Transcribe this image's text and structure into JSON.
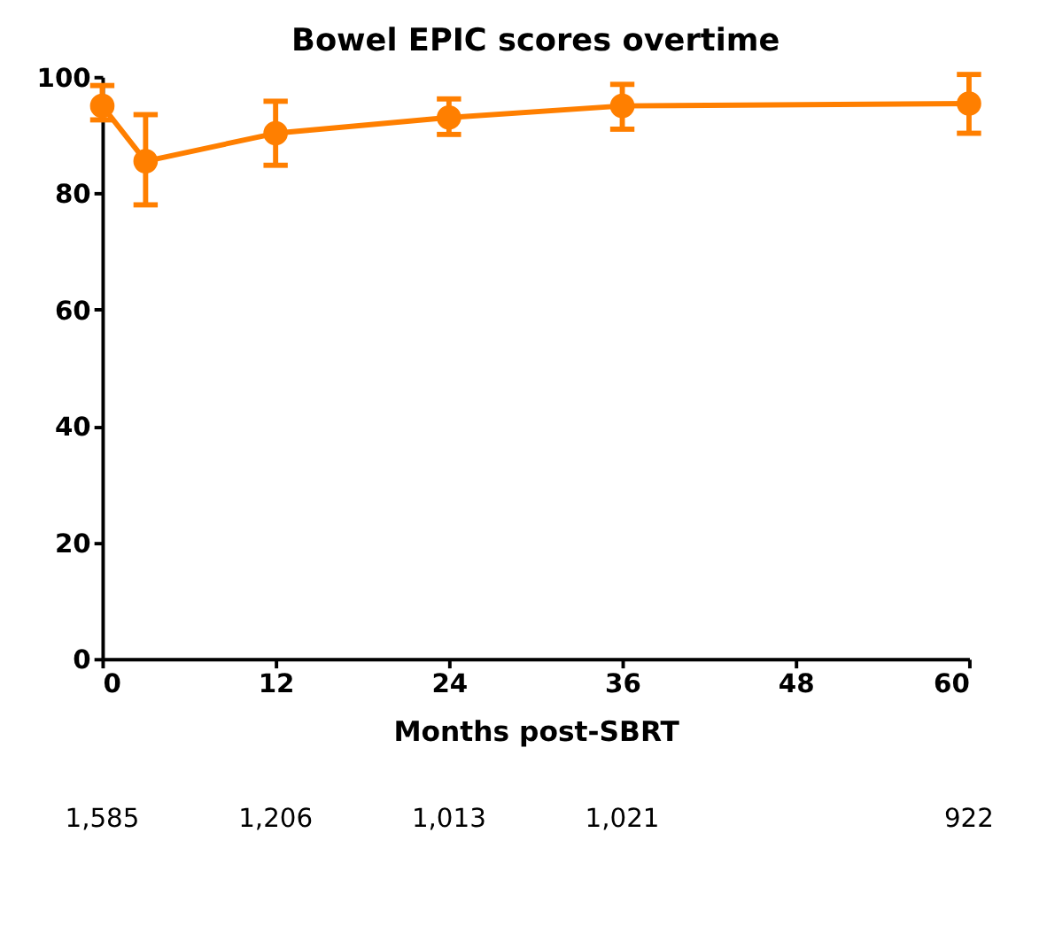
{
  "chart_data": {
    "type": "line",
    "title": "Bowel EPIC scores overtime",
    "xlabel": "Months post-SBRT",
    "x": [
      0,
      3,
      12,
      24,
      36,
      60
    ],
    "series": [
      {
        "color": "#ff7f00",
        "values": [
          95,
          85.5,
          90.3,
          93,
          95,
          95.4
        ],
        "errors": [
          [
            92.6,
            98.5
          ],
          [
            78,
            93.5
          ],
          [
            84.8,
            95.8
          ],
          [
            90.1,
            96.2
          ],
          [
            91,
            98.7
          ],
          [
            90.3,
            100.4
          ]
        ]
      }
    ],
    "xlim": [
      0,
      60
    ],
    "xticks": [
      0,
      12,
      24,
      36,
      48,
      60
    ],
    "ylim": [
      0,
      100
    ],
    "yticks": [
      0,
      20,
      40,
      60,
      80,
      100
    ],
    "grid": false,
    "legend": false,
    "marker": "circle",
    "line_style": "solid",
    "annotations": [
      "1,585",
      "1,206",
      "1,013",
      "1,021",
      "922"
    ]
  }
}
